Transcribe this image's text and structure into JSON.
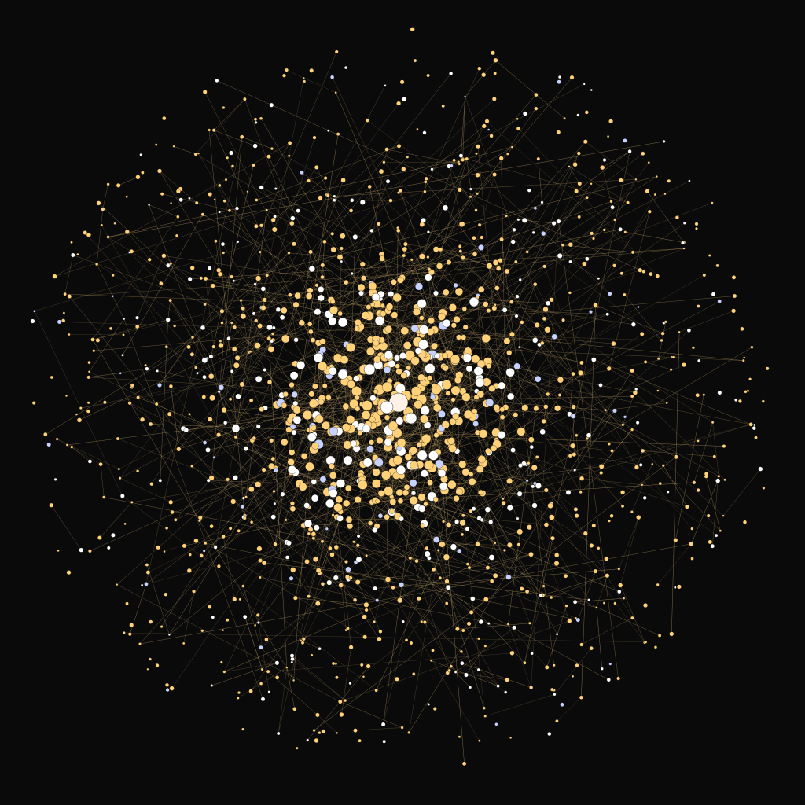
{
  "graph": {
    "type": "force-directed-network",
    "background": "#0a0a0a",
    "edge_color": "#c8a96a",
    "node_classes": [
      {
        "name": "gold",
        "color": "#ffd27a"
      },
      {
        "name": "white",
        "color": "#ffffff"
      },
      {
        "name": "lavender",
        "color": "#c8d2ff"
      }
    ],
    "hub_color": "#fff1e6",
    "approx_node_count": 1500,
    "approx_edge_count": 2600,
    "labels": []
  }
}
